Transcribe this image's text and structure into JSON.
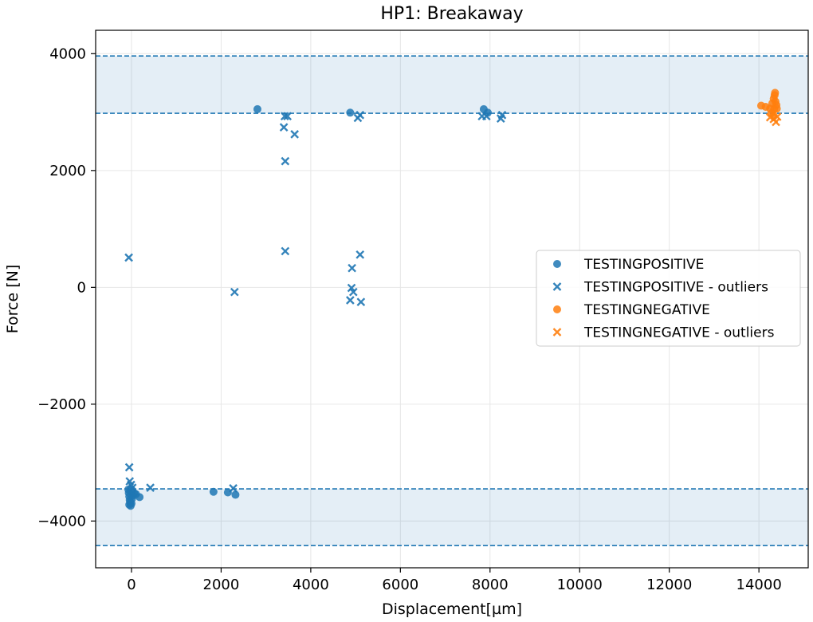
{
  "chart_data": {
    "type": "scatter",
    "title": "HP1: Breakaway",
    "xlabel": "Displacement[µm]",
    "ylabel": "Force [N]",
    "xlim": [
      -800,
      15100
    ],
    "ylim": [
      -4800,
      4400
    ],
    "xticks": [
      0,
      2000,
      4000,
      6000,
      8000,
      10000,
      12000,
      14000
    ],
    "xtick_labels": [
      "0",
      "2000",
      "4000",
      "6000",
      "8000",
      "10000",
      "12000",
      "14000"
    ],
    "yticks": [
      -4000,
      -2000,
      0,
      2000,
      4000
    ],
    "ytick_labels": [
      "−4000",
      "−2000",
      "0",
      "2000",
      "4000"
    ],
    "grid": true,
    "legend_position": "center-right",
    "bands": [
      {
        "y_low": 2980,
        "y_high": 3960,
        "color": "#1f77b4"
      },
      {
        "y_low": -4420,
        "y_high": -3450,
        "color": "#1f77b4"
      }
    ],
    "series": [
      {
        "name": "TESTINGPOSITIVE",
        "marker": "circle",
        "color": "#1f77b4",
        "points": [
          [
            2810,
            3050
          ],
          [
            4880,
            2990
          ],
          [
            7860,
            3050
          ],
          [
            7950,
            2990
          ],
          [
            -60,
            -3520
          ],
          [
            -50,
            -3580
          ],
          [
            -40,
            -3640
          ],
          [
            -30,
            -3680
          ],
          [
            -50,
            -3720
          ],
          [
            -20,
            -3740
          ],
          [
            0,
            -3700
          ],
          [
            10,
            -3620
          ],
          [
            30,
            -3560
          ],
          [
            60,
            -3520
          ],
          [
            100,
            -3540
          ],
          [
            180,
            -3590
          ],
          [
            -70,
            -3460
          ],
          [
            -10,
            -3490
          ],
          [
            1830,
            -3500
          ],
          [
            2150,
            -3510
          ],
          [
            2320,
            -3550
          ]
        ]
      },
      {
        "name": "TESTINGPOSITIVE - outliers",
        "marker": "x",
        "color": "#1f77b4",
        "points": [
          [
            -60,
            510
          ],
          [
            -50,
            -3080
          ],
          [
            -40,
            -3320
          ],
          [
            -10,
            -3380
          ],
          [
            20,
            -3430
          ],
          [
            420,
            -3430
          ],
          [
            2270,
            -3440
          ],
          [
            2300,
            -80
          ],
          [
            3420,
            2930
          ],
          [
            3480,
            2930
          ],
          [
            3400,
            2740
          ],
          [
            3640,
            2620
          ],
          [
            3430,
            2160
          ],
          [
            3430,
            620
          ],
          [
            4920,
            330
          ],
          [
            5100,
            560
          ],
          [
            4910,
            -10
          ],
          [
            4950,
            -80
          ],
          [
            4880,
            -220
          ],
          [
            5120,
            -250
          ],
          [
            5050,
            2900
          ],
          [
            5100,
            2950
          ],
          [
            7820,
            2930
          ],
          [
            7920,
            2930
          ],
          [
            8240,
            2890
          ],
          [
            8270,
            2950
          ]
        ]
      },
      {
        "name": "TESTINGNEGATIVE",
        "marker": "circle",
        "color": "#ff7f0e",
        "points": [
          [
            14050,
            3110
          ],
          [
            14150,
            3090
          ],
          [
            14250,
            3060
          ],
          [
            14300,
            3150
          ],
          [
            14330,
            3230
          ],
          [
            14350,
            3290
          ],
          [
            14360,
            3330
          ],
          [
            14340,
            3050
          ],
          [
            14370,
            3180
          ],
          [
            14390,
            3120
          ],
          [
            14400,
            3060
          ],
          [
            14280,
            2980
          ],
          [
            14330,
            2940
          ]
        ]
      },
      {
        "name": "TESTINGNEGATIVE - outliers",
        "marker": "x",
        "color": "#ff7f0e",
        "points": [
          [
            14250,
            2910
          ],
          [
            14330,
            2880
          ],
          [
            14380,
            2830
          ],
          [
            14410,
            2920
          ]
        ]
      }
    ]
  }
}
